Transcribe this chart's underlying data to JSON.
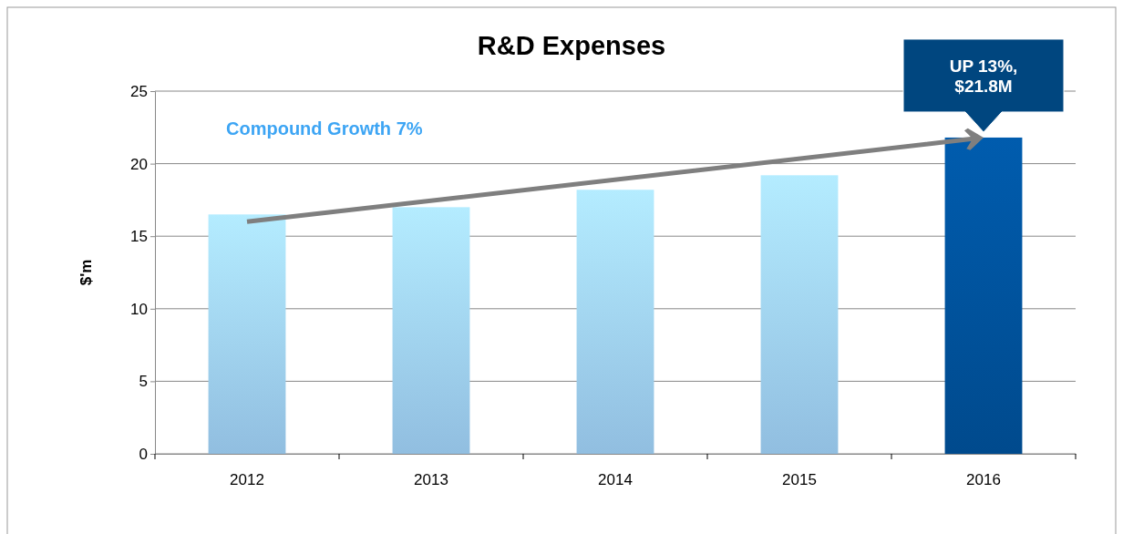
{
  "chart_data": {
    "type": "bar",
    "title": "R&D Expenses",
    "ylabel": "$'m",
    "categories": [
      "2012",
      "2013",
      "2014",
      "2015",
      "2016"
    ],
    "values": [
      16.5,
      17.0,
      18.2,
      19.2,
      21.8
    ],
    "colors": [
      "#9fd0f5",
      "#9fd0f5",
      "#9fd0f5",
      "#9fd0f5",
      "#00519a"
    ],
    "ylim": [
      0,
      25
    ],
    "yticks": [
      0,
      5,
      10,
      15,
      20,
      25
    ],
    "grid": "y",
    "annotations": [
      "Compound Growth 7%",
      {
        "text": "UP 13%, $21.8M",
        "x": "2016",
        "y": 21.8
      }
    ]
  }
}
